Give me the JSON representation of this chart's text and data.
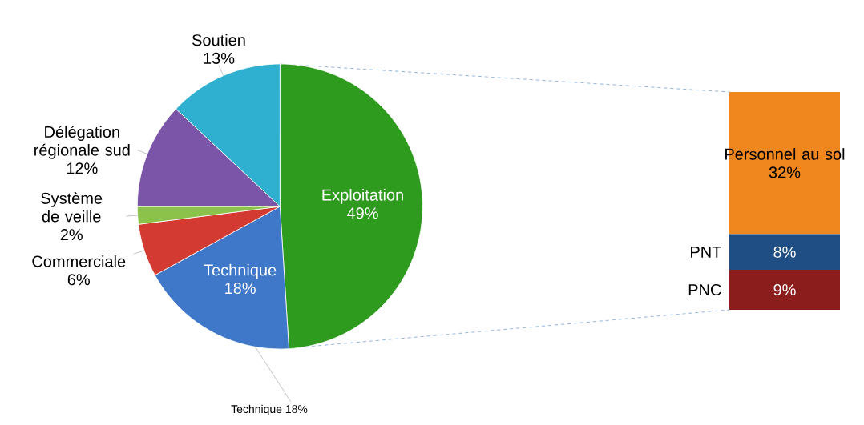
{
  "chart_data": [
    {
      "type": "pie",
      "categories": [
        "Exploitation",
        "Technique",
        "Commerciale",
        "Système de veille",
        "Délégation régionale sud",
        "Soutien"
      ],
      "values": [
        49,
        18,
        6,
        2,
        12,
        13
      ],
      "colors": [
        "#2e9a1e",
        "#3f78c8",
        "#d23a32",
        "#8cc24a",
        "#7b55a8",
        "#2fb0d0"
      ],
      "value_labels": [
        "49%",
        "18%",
        "6%",
        "2%",
        "12%",
        "13%"
      ],
      "annotations": [
        "Technique 18%"
      ]
    },
    {
      "type": "bar",
      "stacked": true,
      "categories": [
        null
      ],
      "series": [
        {
          "name": "PNC",
          "color": "#8b1e1c",
          "values": [
            9
          ],
          "value_labels": [
            "9%"
          ]
        },
        {
          "name": "PNT",
          "color": "#1f4e85",
          "values": [
            8
          ],
          "value_labels": [
            "8%"
          ]
        },
        {
          "name": "Personnel au sol",
          "color": "#f0861e",
          "values": [
            32
          ],
          "value_labels": [
            "32%"
          ]
        }
      ]
    }
  ]
}
